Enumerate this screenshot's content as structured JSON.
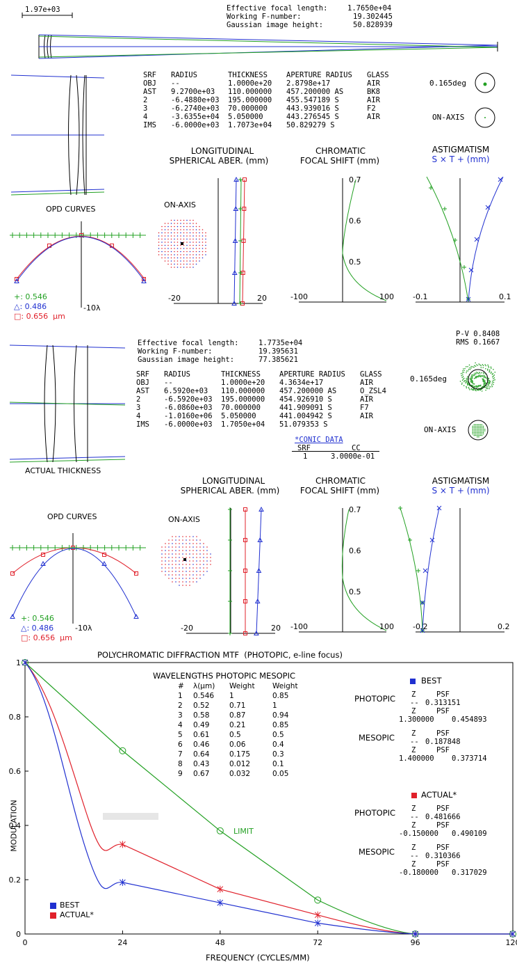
{
  "scale_bar": "1.97e+03",
  "design1": {
    "summary": [
      [
        "Effective focal length:",
        "1.7650e+04"
      ],
      [
        "Working F-number:",
        "19.302445"
      ],
      [
        "Gaussian image height:",
        "50.828939"
      ]
    ],
    "table_header": [
      "SRF",
      "RADIUS",
      "THICKNESS",
      "APERTURE RADIUS",
      "GLASS"
    ],
    "rows": [
      [
        "OBJ",
        "--",
        "1.0000e+20",
        "2.8798e+17",
        "AIR"
      ],
      [
        "AST",
        "9.2700e+03",
        "110.000000",
        "457.200000 AS",
        "BK8"
      ],
      [
        "2",
        "-6.4880e+03",
        "195.000000",
        "455.547189 S",
        "AIR"
      ],
      [
        "3",
        "-6.2740e+03",
        "70.000000",
        "443.939016 S",
        "F2"
      ],
      [
        "4",
        "-3.6355e+04",
        "5.050000",
        "443.276545 S",
        "AIR"
      ],
      [
        "IMS",
        "-6.0000e+03",
        "1.7073e+04",
        "50.829279 S",
        ""
      ]
    ],
    "spot_labels": [
      "0.165deg",
      "ON-AXIS"
    ],
    "opd_title": "OPD CURVES",
    "opd_legend": [
      "+: 0.546",
      "△: 0.486",
      "□: 0.656  μm"
    ],
    "opd_scale": "-10λ",
    "spot_onaxis": "ON-AXIS",
    "lsa_title": [
      "LONGITUDINAL",
      "SPHERICAL ABER. (mm)"
    ],
    "lsa_ticks": [
      "-20",
      "20"
    ],
    "chrom_title": [
      "CHROMATIC",
      "FOCAL SHIFT (mm)"
    ],
    "chrom_ticks": [
      "-100",
      "100"
    ],
    "chrom_y": [
      "0.7",
      "0.6",
      "0.5"
    ],
    "astig_title": [
      "ASTIGMATISM",
      "S × T + (mm)"
    ],
    "astig_ticks": [
      "-0.1",
      "0.1"
    ]
  },
  "design2": {
    "pv": "P-V 0.8408",
    "rms": "RMS 0.1667",
    "summary": [
      [
        "Effective focal length:",
        "1.7735e+04"
      ],
      [
        "Working F-number:",
        "19.395631"
      ],
      [
        "Gaussian image height:",
        "77.385621"
      ]
    ],
    "table_header": [
      "SRF",
      "RADIUS",
      "THICKNESS",
      "APERTURE RADIUS",
      "GLASS"
    ],
    "rows": [
      [
        "OBJ",
        "--",
        "1.0000e+20",
        "4.3634e+17",
        "AIR"
      ],
      [
        "AST",
        "6.5920e+03",
        "110.000000",
        "457.200000 AS",
        "O_ZSL4"
      ],
      [
        "2",
        "-6.5920e+03",
        "195.000000",
        "454.926910 S",
        "AIR"
      ],
      [
        "3",
        "-6.0860e+03",
        "70.000000",
        "441.909091 S",
        "F7"
      ],
      [
        "4",
        "-1.0160e+06",
        "5.050000",
        "441.004942 S",
        "AIR"
      ],
      [
        "IMS",
        "-6.0000e+03",
        "1.7050e+04",
        "51.079353 S",
        ""
      ]
    ],
    "conic_link": "*CONIC DATA",
    "conic_header": [
      "SRF",
      "CC"
    ],
    "conic_row": [
      "1",
      "3.0000e-01"
    ],
    "spot_labels": [
      "0.165deg",
      "ON-AXIS"
    ],
    "lens_caption": "ACTUAL THICKNESS",
    "opd_title": "OPD CURVES",
    "opd_legend": [
      "+: 0.546",
      "△: 0.486",
      "□: 0.656  μm"
    ],
    "opd_scale": "-10λ",
    "spot_onaxis": "ON-AXIS",
    "lsa_title": [
      "LONGITUDINAL",
      "SPHERICAL ABER. (mm)"
    ],
    "lsa_ticks": [
      "-20",
      "20"
    ],
    "chrom_title": [
      "CHROMATIC",
      "FOCAL SHIFT (mm)"
    ],
    "chrom_ticks": [
      "-100",
      "100"
    ],
    "chrom_y": [
      "0.7",
      "0.6",
      "0.5"
    ],
    "astig_title": [
      "ASTIGMATISM",
      "S × T + (mm)"
    ],
    "astig_ticks": [
      "-0.2",
      "0.2"
    ]
  },
  "mtf": {
    "title": "POLYCHROMATIC DIFFRACTION MTF  (PHOTOPIC, e-line focus)",
    "xlabel": "FREQUENCY (CYCLES/MM)",
    "ylabel": "MODULATION",
    "limit_label": "LIMIT",
    "legend": [
      "BEST",
      "ACTUAL*"
    ],
    "wave_table_title": "WAVELENGTHS PHOTOPIC MESOPIC",
    "wave_table_header": [
      "#",
      "λ(μm)",
      "Weight",
      "Weight"
    ],
    "wave_rows": [
      [
        "1",
        "0.546",
        "1",
        "0.85"
      ],
      [
        "2",
        "0.52",
        "0.71",
        "1"
      ],
      [
        "3",
        "0.58",
        "0.87",
        "0.94"
      ],
      [
        "4",
        "0.49",
        "0.21",
        "0.85"
      ],
      [
        "5",
        "0.61",
        "0.5",
        "0.5"
      ],
      [
        "6",
        "0.46",
        "0.06",
        "0.4"
      ],
      [
        "7",
        "0.64",
        "0.175",
        "0.3"
      ],
      [
        "8",
        "0.43",
        "0.012",
        "0.1"
      ],
      [
        "9",
        "0.67",
        "0.032",
        "0.05"
      ]
    ],
    "best_block": {
      "label": "BEST",
      "photopic": "PHOTOPIC",
      "mesopic": "MESOPIC",
      "rows": [
        [
          "Z",
          "PSF"
        ],
        [
          "--",
          "0.313151"
        ],
        [
          "Z",
          "PSF"
        ],
        [
          "1.300000",
          "0.454893"
        ],
        [
          "Z",
          "PSF"
        ],
        [
          "--",
          "0.187848"
        ],
        [
          "Z",
          "PSF"
        ],
        [
          "1.400000",
          "0.373714"
        ]
      ]
    },
    "actual_block": {
      "label": "ACTUAL*",
      "photopic": "PHOTOPIC",
      "mesopic": "MESOPIC",
      "rows": [
        [
          "Z",
          "PSF"
        ],
        [
          "--",
          "0.481666"
        ],
        [
          "Z",
          "PSF"
        ],
        [
          "-0.150000",
          "0.490109"
        ],
        [
          "Z",
          "PSF"
        ],
        [
          "--",
          "0.310366"
        ],
        [
          "Z",
          "PSF"
        ],
        [
          "-0.180000",
          "0.317029"
        ]
      ]
    }
  },
  "chart_data": {
    "type": "line",
    "title": "POLYCHROMATIC DIFFRACTION MTF  (PHOTOPIC, e-line focus)",
    "xlabel": "FREQUENCY (CYCLES/MM)",
    "ylabel": "MODULATION",
    "xlim": [
      0,
      120
    ],
    "ylim": [
      0,
      1
    ],
    "xticks": [
      "0",
      "24",
      "48",
      "72",
      "96",
      "120"
    ],
    "yticks": [
      "0",
      "0.2",
      "0.4",
      "0.6",
      "0.8",
      "1"
    ],
    "x": [
      0,
      24,
      48,
      72,
      96,
      120
    ],
    "series": [
      {
        "name": "LIMIT",
        "color": "#22a022",
        "values": [
          1.0,
          0.675,
          0.38,
          0.125,
          0.0,
          0.0
        ]
      },
      {
        "name": "ACTUAL*",
        "color": "#e0202a",
        "values": [
          1.0,
          0.33,
          0.165,
          0.07,
          0.0,
          0.0
        ]
      },
      {
        "name": "BEST",
        "color": "#2030d0",
        "values": [
          1.0,
          0.19,
          0.115,
          0.04,
          0.0,
          0.0
        ]
      }
    ],
    "legend_position": "bottom-left"
  },
  "colors": {
    "green": "#22a022",
    "blue": "#2030d0",
    "red": "#e0202a"
  }
}
